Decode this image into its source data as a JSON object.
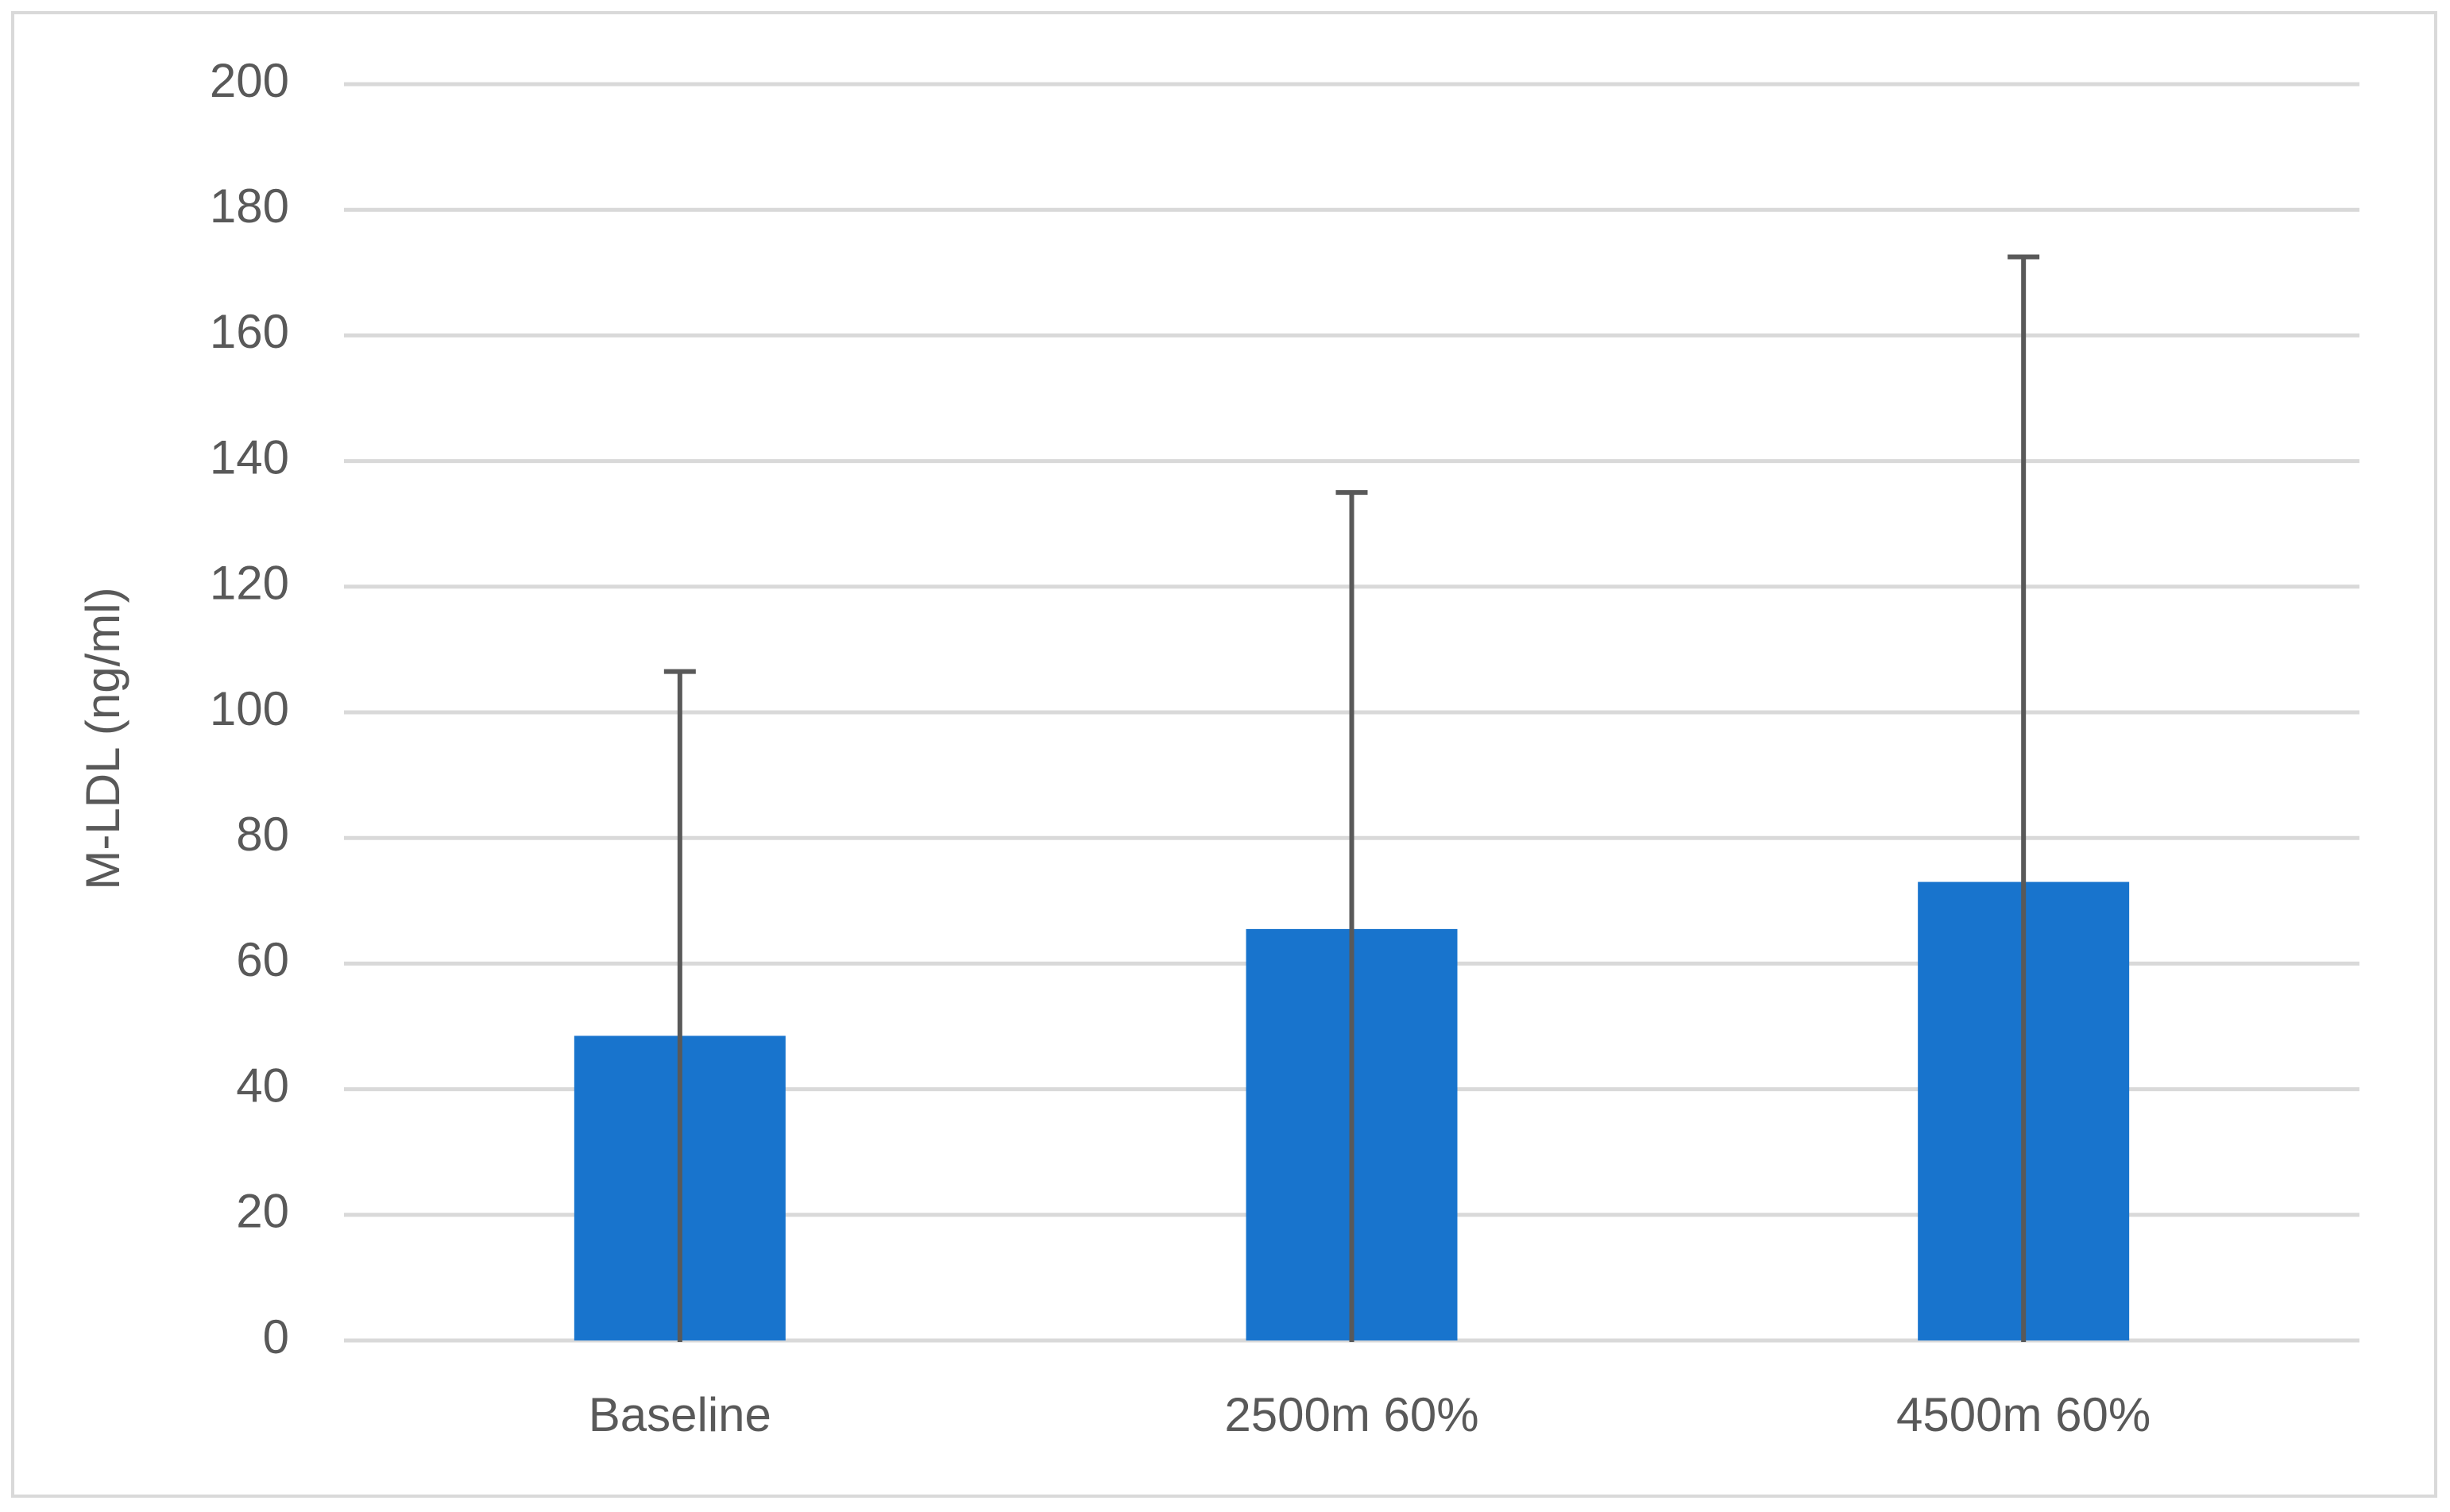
{
  "chart_data": {
    "type": "bar",
    "y_label": "M-LDL (ng/ml)",
    "categories": [
      "Baseline",
      "2500m 60%",
      "4500m 60%"
    ],
    "values": [
      48.5,
      65.5,
      73
    ],
    "errors": [
      58,
      69.5,
      99.5
    ],
    "color": "#1874cd",
    "error_color": "#595959",
    "ylim": [
      0,
      200
    ],
    "yticks": [
      0,
      20,
      40,
      60,
      80,
      100,
      120,
      140,
      160,
      180,
      200
    ],
    "grid": true
  }
}
